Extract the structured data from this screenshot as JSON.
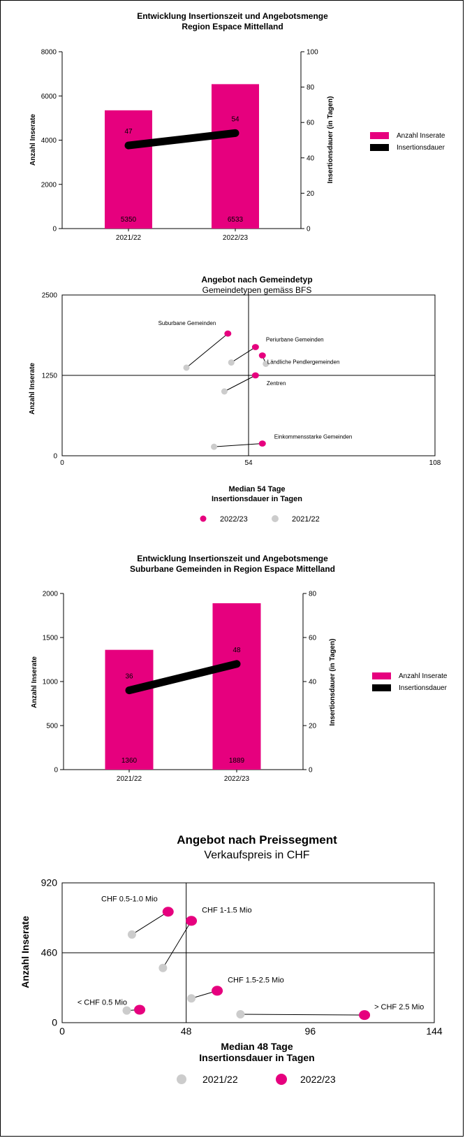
{
  "colors": {
    "magenta": "#e6007e",
    "grey": "#cccccc",
    "black": "#000000"
  },
  "chart_data": [
    {
      "type": "bar",
      "title": "Entwicklung Insertionszeit und Angebotsmenge",
      "subtitle": "Region Espace Mittelland",
      "categories": [
        "2021/22",
        "2022/23"
      ],
      "series": [
        {
          "name": "Anzahl Inserate",
          "type": "bar",
          "axis": "left",
          "values": [
            5350,
            6533
          ],
          "labels": [
            "5350",
            "6533"
          ]
        },
        {
          "name": "Insertionsdauer",
          "type": "line",
          "axis": "right",
          "values": [
            47,
            54
          ],
          "labels": [
            "47",
            "54"
          ]
        }
      ],
      "ylabel": "Anzahl Inserate",
      "y2label": "Insertionsdauer (in Tagen)",
      "ylim": [
        0,
        8000
      ],
      "yticks": [
        "0",
        "2000",
        "4000",
        "6000",
        "8000"
      ],
      "y2lim": [
        0,
        100
      ],
      "y2ticks": [
        "0",
        "20",
        "40",
        "60",
        "80",
        "100"
      ],
      "legend": "right"
    },
    {
      "type": "scatter",
      "title": "Angebot nach Gemeindetyp",
      "subtitle": "Gemeindetypen gemäss BFS",
      "xlabel": "Insertionsdauer in Tagen",
      "median_label": "Median 54 Tage",
      "ylabel": "Anzahl Inserate",
      "xlim": [
        0,
        108
      ],
      "xticks": [
        "0",
        "54",
        "108"
      ],
      "ylim": [
        0,
        2500
      ],
      "yticks": [
        "0",
        "1250",
        "2500"
      ],
      "reference_x": 54,
      "reference_y": 1250,
      "legend_labels": [
        "2022/23",
        "2021/22"
      ],
      "points": [
        {
          "label": "Suburbane Gemeinden",
          "x_2021": 36,
          "y_2021": 1370,
          "x_2022": 48,
          "y_2022": 1900
        },
        {
          "label": "Periurbane Gemeinden",
          "x_2021": 49,
          "y_2021": 1450,
          "x_2022": 56,
          "y_2022": 1690
        },
        {
          "label": "Ländliche Pendlergemeinden",
          "x_2021": 59,
          "y_2021": 1430,
          "x_2022": 58,
          "y_2022": 1560
        },
        {
          "label": "Zentren",
          "x_2021": 47,
          "y_2021": 1000,
          "x_2022": 56,
          "y_2022": 1250
        },
        {
          "label": "Einkommensstarke Gemeinden",
          "x_2021": 44,
          "y_2021": 140,
          "x_2022": 58,
          "y_2022": 190
        }
      ]
    },
    {
      "type": "bar",
      "title": "Entwicklung Insertionszeit und Angebotsmenge",
      "subtitle": "Suburbane Gemeinden in Region Espace Mittelland",
      "categories": [
        "2021/22",
        "2022/23"
      ],
      "series": [
        {
          "name": "Anzahl Inserate",
          "type": "bar",
          "axis": "left",
          "values": [
            1360,
            1889
          ],
          "labels": [
            "1360",
            "1889"
          ]
        },
        {
          "name": "Insertionsdauer",
          "type": "line",
          "axis": "right",
          "values": [
            36,
            48
          ],
          "labels": [
            "36",
            "48"
          ]
        }
      ],
      "ylabel": "Anzahl Inserate",
      "y2label": "Insertionsdauer (in Tagen)",
      "ylim": [
        0,
        2000
      ],
      "yticks": [
        "0",
        "500",
        "1000",
        "1500",
        "2000"
      ],
      "y2lim": [
        0,
        80
      ],
      "y2ticks": [
        "0",
        "20",
        "40",
        "60",
        "80"
      ],
      "legend": "right"
    },
    {
      "type": "scatter",
      "title": "Angebot nach Preissegment",
      "subtitle": "Verkaufspreis in CHF",
      "xlabel": "Insertionsdauer in Tagen",
      "median_label": "Median 48 Tage",
      "ylabel": "Anzahl Inserate",
      "xlim": [
        0,
        144
      ],
      "xticks": [
        "0",
        "48",
        "96",
        "144"
      ],
      "ylim": [
        0,
        920
      ],
      "yticks": [
        "0",
        "460",
        "920"
      ],
      "reference_x": 48,
      "reference_y": 460,
      "legend_labels": [
        "2021/22",
        "2022/23"
      ],
      "points": [
        {
          "label": "CHF 0.5-1.0 Mio",
          "x_2021": 27,
          "y_2021": 580,
          "x_2022": 41,
          "y_2022": 730
        },
        {
          "label": "CHF 1-1.5 Mio",
          "x_2021": 39,
          "y_2021": 360,
          "x_2022": 50,
          "y_2022": 670
        },
        {
          "label": "CHF 1.5-2.5 Mio",
          "x_2021": 50,
          "y_2021": 160,
          "x_2022": 60,
          "y_2022": 210
        },
        {
          "label": "< CHF 0.5 Mio",
          "x_2021": 25,
          "y_2021": 80,
          "x_2022": 30,
          "y_2022": 85
        },
        {
          "label": "> CHF 2.5 Mio",
          "x_2021": 69,
          "y_2021": 55,
          "x_2022": 117,
          "y_2022": 50
        }
      ]
    }
  ]
}
